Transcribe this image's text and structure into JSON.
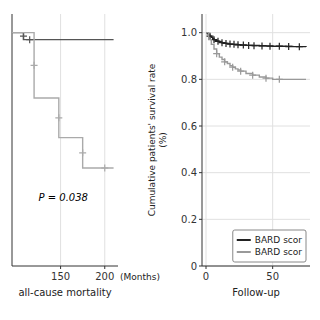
{
  "chart_data": [
    {
      "type": "step",
      "xlabel": "all-cause mortality",
      "annotations": [
        {
          "text": "P = 0.038",
          "x": 125,
          "y": 0.28
        },
        {
          "text": "(Months)"
        }
      ],
      "xlim": [
        95,
        215
      ],
      "ylim": [
        0.0,
        1.08
      ],
      "xticks": [
        150,
        200
      ],
      "yticks": [],
      "tick_labels": "x",
      "grid": true,
      "series": [
        {
          "color": "#555555",
          "x": [
            95,
            108,
            108,
            115,
            115,
            210
          ],
          "values": [
            1.0,
            1.0,
            0.97,
            0.97,
            0.97,
            0.97
          ]
        },
        {
          "type": "scatter",
          "marker": "plus",
          "color": "#555555",
          "x": [
            108,
            115
          ],
          "values": [
            0.985,
            0.97
          ]
        },
        {
          "color": "#aaaaaa",
          "x": [
            95,
            120,
            120,
            148,
            148,
            175,
            175,
            200,
            200,
            210
          ],
          "values": [
            1.0,
            1.0,
            0.72,
            0.72,
            0.55,
            0.55,
            0.42,
            0.42,
            0.42,
            0.42
          ]
        },
        {
          "type": "scatter",
          "marker": "plus",
          "color": "#aaaaaa",
          "x": [
            120,
            148,
            175,
            200
          ],
          "values": [
            0.86,
            0.635,
            0.485,
            0.42
          ]
        }
      ]
    },
    {
      "type": "step",
      "xlabel": "Follow-up",
      "ylabel": [
        "Cumulative patients' survival rate",
        "(%)"
      ],
      "xlim": [
        -3,
        78
      ],
      "ylim": [
        0,
        1.08
      ],
      "xticks": [
        0,
        50
      ],
      "yticks": [
        0,
        0.2,
        0.4,
        0.6,
        0.8,
        {
          "value": 1.0,
          "label": "1.0"
        }
      ],
      "grid": true,
      "legend": "lower right",
      "series": [
        {
          "name": "BARD scor",
          "color": "#222222",
          "x": [
            0,
            1,
            2,
            3,
            4,
            5,
            6,
            7,
            8,
            9,
            10,
            11,
            12,
            13,
            14,
            15,
            16,
            17,
            18,
            19,
            20,
            22,
            24,
            26,
            28,
            30,
            35,
            40,
            45,
            50,
            55,
            60,
            65,
            70,
            75
          ],
          "values": [
            1.0,
            0.995,
            0.99,
            0.985,
            0.98,
            0.975,
            0.97,
            0.967,
            0.965,
            0.963,
            0.961,
            0.959,
            0.957,
            0.956,
            0.955,
            0.954,
            0.953,
            0.952,
            0.951,
            0.951,
            0.95,
            0.949,
            0.948,
            0.947,
            0.947,
            0.946,
            0.945,
            0.944,
            0.943,
            0.942,
            0.942,
            0.941,
            0.94,
            0.94,
            0.939
          ]
        },
        {
          "type": "scatter",
          "marker": "plus",
          "color": "#222222",
          "x": [
            3,
            6,
            9,
            12,
            15,
            18,
            21,
            24,
            28,
            32,
            36,
            42,
            48,
            55,
            62,
            70
          ],
          "values": [
            0.985,
            0.97,
            0.963,
            0.957,
            0.954,
            0.951,
            0.95,
            0.948,
            0.947,
            0.945,
            0.944,
            0.943,
            0.942,
            0.942,
            0.941,
            0.94
          ]
        },
        {
          "name": "BARD scor",
          "color": "#999999",
          "x": [
            0,
            2,
            4,
            6,
            8,
            10,
            12,
            14,
            16,
            18,
            20,
            22,
            24,
            26,
            30,
            35,
            40,
            45,
            50,
            55,
            60,
            65,
            70,
            75
          ],
          "values": [
            1.0,
            0.97,
            0.95,
            0.93,
            0.91,
            0.895,
            0.885,
            0.875,
            0.868,
            0.858,
            0.852,
            0.845,
            0.84,
            0.835,
            0.825,
            0.818,
            0.81,
            0.805,
            0.8,
            0.8,
            0.8,
            0.8,
            0.8,
            0.8
          ]
        },
        {
          "type": "scatter",
          "marker": "plus",
          "color": "#999999",
          "x": [
            8,
            14,
            20,
            26,
            35,
            45,
            55
          ],
          "values": [
            0.91,
            0.875,
            0.852,
            0.835,
            0.818,
            0.805,
            0.8
          ]
        }
      ]
    }
  ]
}
